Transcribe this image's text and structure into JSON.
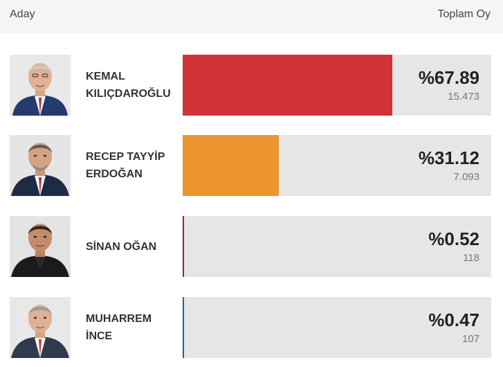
{
  "header": {
    "left": "Aday",
    "right": "Toplam Oy"
  },
  "candidates": [
    {
      "name_line1": "KEMAL",
      "name_line2": "KILIÇDAROĞLU",
      "percent_label": "%67.89",
      "share": 0.6789,
      "votes": "15.473",
      "color": "#d13438"
    },
    {
      "name_line1": "RECEP TAYYİP",
      "name_line2": "ERDOĞAN",
      "percent_label": "%31.12",
      "share": 0.3112,
      "votes": "7.093",
      "color": "#ec9530"
    },
    {
      "name_line1": "SİNAN OĞAN",
      "name_line2": "",
      "percent_label": "%0.52",
      "share": 0.0052,
      "votes": "118",
      "color": "#8e1f5a"
    },
    {
      "name_line1": "MUHARREM",
      "name_line2": "İNCE",
      "percent_label": "%0.47",
      "share": 0.0047,
      "votes": "107",
      "color": "#1a5fa8"
    }
  ]
}
